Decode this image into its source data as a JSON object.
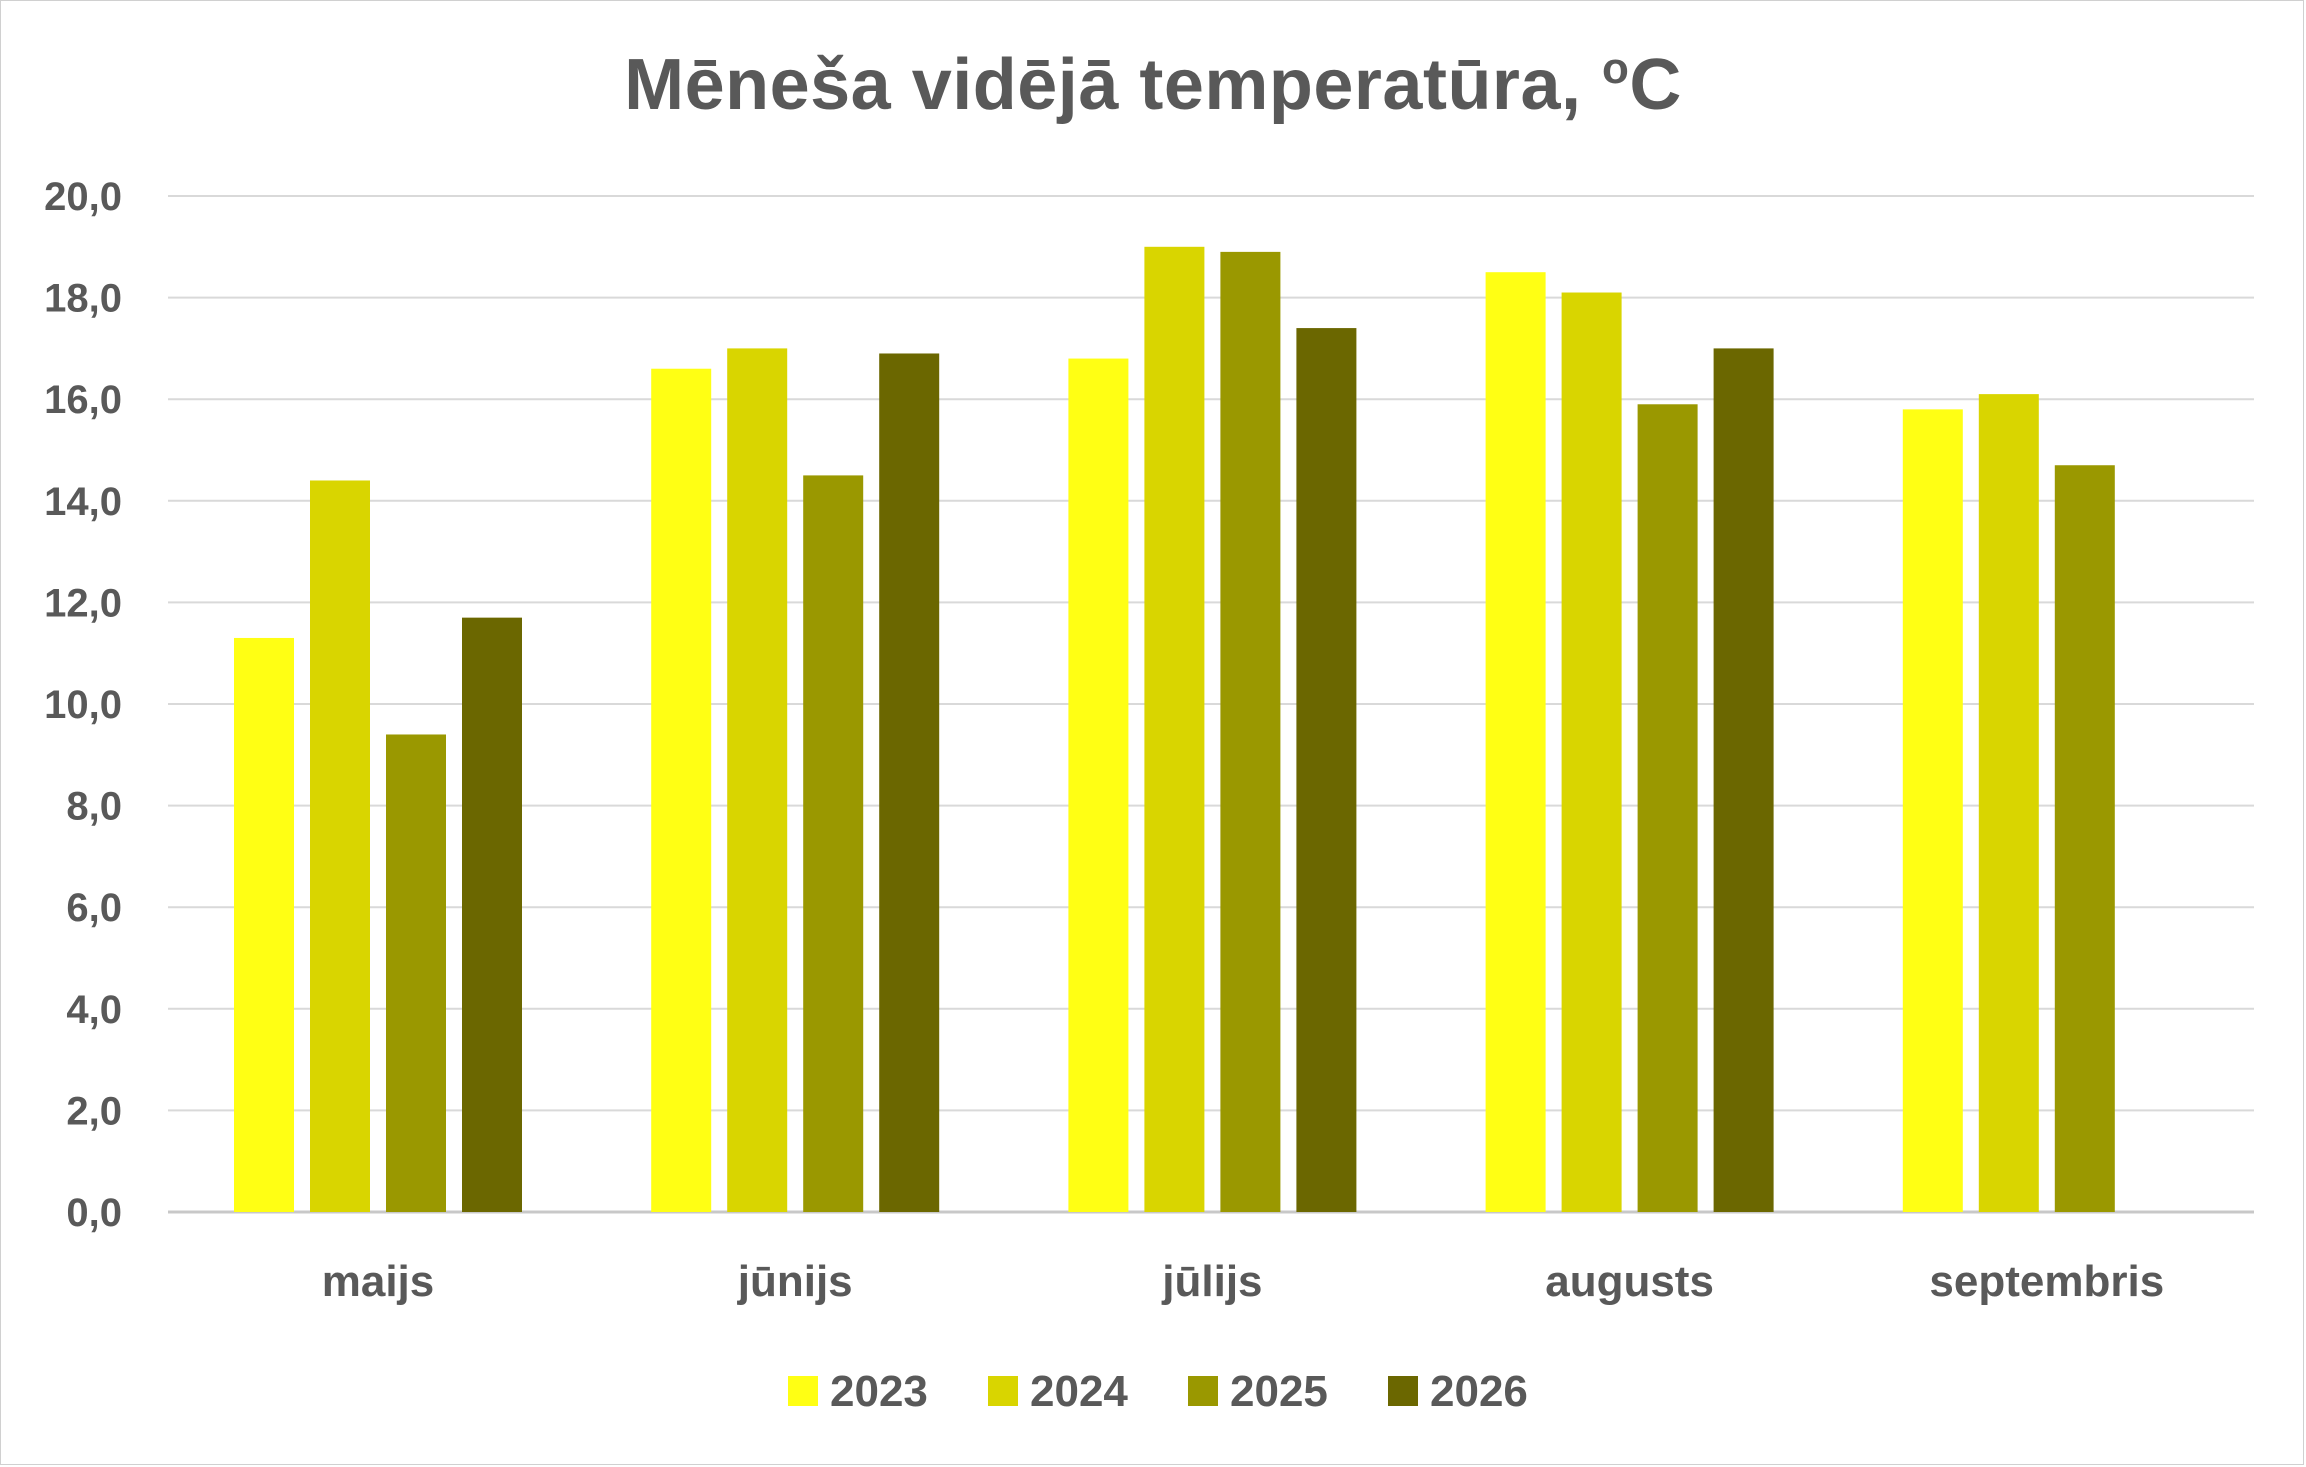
{
  "chart_data": {
    "type": "bar",
    "title": "Mēneša vidējā temperatūra, ",
    "title_unit_sup": "o",
    "title_unit": "C",
    "categories": [
      "maijs",
      "jūnijs",
      "jūlijs",
      "augusts",
      "septembris"
    ],
    "series": [
      {
        "name": "2023",
        "color": "#FFFF14",
        "values": [
          11.3,
          16.6,
          16.8,
          18.5,
          15.8
        ]
      },
      {
        "name": "2024",
        "color": "#D9D500",
        "values": [
          14.4,
          17.0,
          19.0,
          18.1,
          16.1
        ]
      },
      {
        "name": "2025",
        "color": "#9A9800",
        "values": [
          9.4,
          14.5,
          18.9,
          15.9,
          14.7
        ]
      },
      {
        "name": "2026",
        "color": "#6B6700",
        "values": [
          11.7,
          16.9,
          17.4,
          17.0,
          null
        ]
      }
    ],
    "ylim": [
      0,
      20
    ],
    "yticks": [
      "0,0",
      "2,0",
      "4,0",
      "6,0",
      "8,0",
      "10,0",
      "12,0",
      "14,0",
      "16,0",
      "18,0",
      "20,0"
    ],
    "grid": true,
    "legend": "bottom",
    "xlabel": "",
    "ylabel": ""
  }
}
